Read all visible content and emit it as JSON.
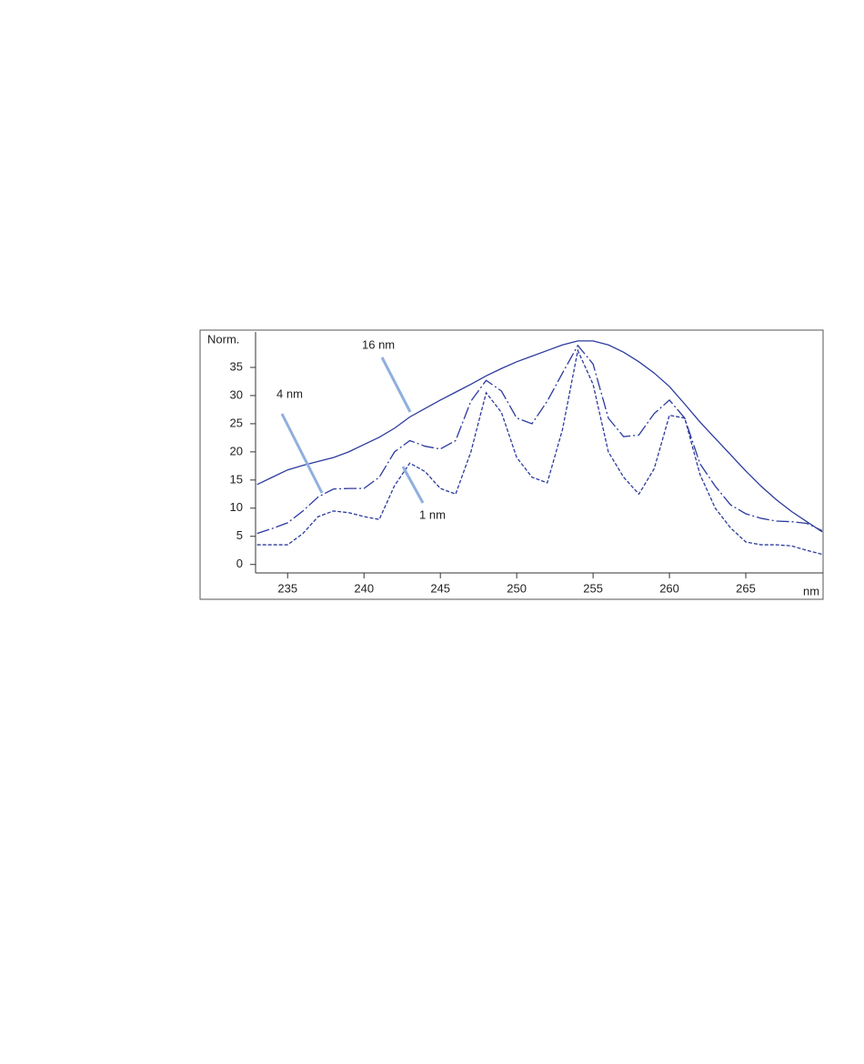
{
  "chart_data": {
    "type": "line",
    "y_label": "Norm.",
    "x_label": "nm",
    "x": [
      233,
      234,
      235,
      236,
      237,
      238,
      239,
      240,
      241,
      242,
      243,
      244,
      245,
      246,
      247,
      248,
      249,
      250,
      251,
      252,
      253,
      254,
      255,
      256,
      257,
      258,
      259,
      260,
      261,
      262,
      263,
      264,
      265,
      266,
      267,
      268,
      269,
      270
    ],
    "series": [
      {
        "name": "16 nm",
        "color": "#2b3a9e",
        "dash": "solid",
        "values": [
          14.2,
          15.5,
          16.8,
          17.6,
          18.3,
          19,
          20,
          21.3,
          22.6,
          24.2,
          26.2,
          27.7,
          29.2,
          30.6,
          32,
          33.5,
          34.8,
          36,
          37,
          38,
          39,
          39.7,
          39.7,
          39,
          37.7,
          36,
          34,
          31.6,
          28.5,
          25.3,
          22.4,
          19.5,
          16.6,
          13.9,
          11.5,
          9.4,
          7.6,
          5.8
        ]
      },
      {
        "name": "4 nm",
        "color": "#2b3a9e",
        "dash": "dashdot",
        "values": [
          5.5,
          6.4,
          7.4,
          9.5,
          12,
          13.4,
          13.5,
          13.5,
          15.5,
          20,
          22,
          21,
          20.5,
          22,
          29,
          32.7,
          30.8,
          26,
          25,
          29,
          34,
          38.9,
          35.6,
          26,
          22.7,
          23,
          26.8,
          29.2,
          26,
          17.9,
          13.9,
          10.6,
          9,
          8.2,
          7.7,
          7.6,
          7.3,
          6
        ]
      },
      {
        "name": "1 nm",
        "color": "#2b3a9e",
        "dash": "dotted",
        "values": [
          3.5,
          3.5,
          3.5,
          5.5,
          8.5,
          9.5,
          9.2,
          8.5,
          8,
          14,
          18,
          16.5,
          13.5,
          12.5,
          20,
          30.5,
          27,
          19,
          15.5,
          14.5,
          24,
          38,
          32,
          20,
          15.5,
          12.5,
          17,
          26.5,
          26,
          16,
          10,
          6.5,
          4,
          3.5,
          3.5,
          3.3,
          2.5,
          1.8
        ]
      }
    ],
    "xlim": [
      232.9,
      270.06
    ],
    "xticks": [
      235,
      240,
      245,
      250,
      255,
      260,
      265
    ],
    "ylim": [
      -1.5,
      41.3
    ],
    "yticks": [
      0,
      5,
      10,
      15,
      20,
      25,
      30,
      35
    ]
  }
}
